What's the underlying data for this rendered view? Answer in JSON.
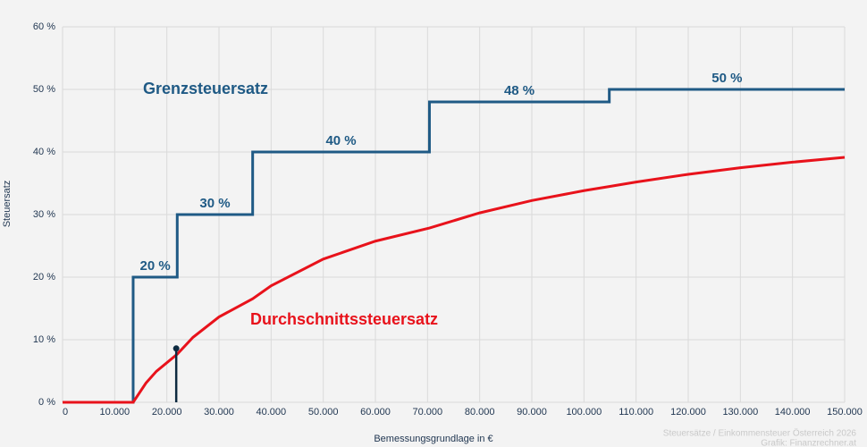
{
  "chart_data": {
    "type": "line",
    "x_label": "Bemessungsgrundlage in €",
    "y_label": "Steuersatz",
    "source": [
      "Steuersätze / Einkommensteuer Österreich 2026",
      "Grafik: Finanzrechner.at"
    ],
    "xlim": [
      0,
      150000
    ],
    "ylim": [
      0,
      60
    ],
    "grid": true,
    "xticks": [
      0,
      {
        "value": 10000,
        "label": "10.000"
      },
      {
        "value": 20000,
        "label": "20.000"
      },
      {
        "value": 30000,
        "label": "30.000"
      },
      {
        "value": 40000,
        "label": "40.000"
      },
      {
        "value": 50000,
        "label": "50.000"
      },
      {
        "value": 60000,
        "label": "60.000"
      },
      {
        "value": 70000,
        "label": "70.000"
      },
      {
        "value": 80000,
        "label": "80.000"
      },
      {
        "value": 90000,
        "label": "90.000"
      },
      {
        "value": 100000,
        "label": "100.000"
      },
      {
        "value": 110000,
        "label": "110.000"
      },
      {
        "value": 120000,
        "label": "120.000"
      },
      {
        "value": 130000,
        "label": "130.000"
      },
      {
        "value": 140000,
        "label": "140.000"
      },
      {
        "value": 150000,
        "label": "150.000"
      }
    ],
    "yticks": [
      {
        "value": 0,
        "label": "0 %"
      },
      {
        "value": 10,
        "label": "10 %"
      },
      {
        "value": 20,
        "label": "20 %"
      },
      {
        "value": 30,
        "label": "30 %"
      },
      {
        "value": 40,
        "label": "40 %"
      },
      {
        "value": 50,
        "label": "50 %"
      },
      {
        "value": 60,
        "label": "60 %"
      }
    ],
    "series": [
      {
        "name": "Grenzsteuersatz",
        "color": "#1f5a85",
        "x": [
          0,
          13539,
          13539,
          21992,
          21992,
          36458,
          36458,
          70365,
          70365,
          104859,
          104859,
          150000
        ],
        "values": [
          0,
          0,
          20,
          20,
          30,
          30,
          40,
          40,
          48,
          48,
          50,
          50
        ],
        "level_labels": [
          "20 %",
          "30 %",
          "40 %",
          "48 %",
          "50 %"
        ]
      },
      {
        "name": "Durchschnittssteuersatz",
        "color": "#e8121b",
        "x": [
          0,
          13539,
          16000,
          18000,
          21992,
          25000,
          30000,
          36458,
          40000,
          50000,
          60000,
          70365,
          80000,
          90000,
          100000,
          104859,
          110000,
          120000,
          130000,
          140000,
          150000
        ],
        "values": [
          0,
          0,
          3.08,
          4.96,
          7.69,
          10.37,
          13.64,
          16.54,
          18.62,
          22.89,
          25.75,
          27.85,
          30.27,
          32.24,
          33.82,
          34.48,
          35.2,
          36.43,
          37.48,
          38.37,
          39.15
        ]
      }
    ],
    "marker": {
      "x": 21800,
      "value": 8.6,
      "color": "#0d2a40"
    }
  }
}
